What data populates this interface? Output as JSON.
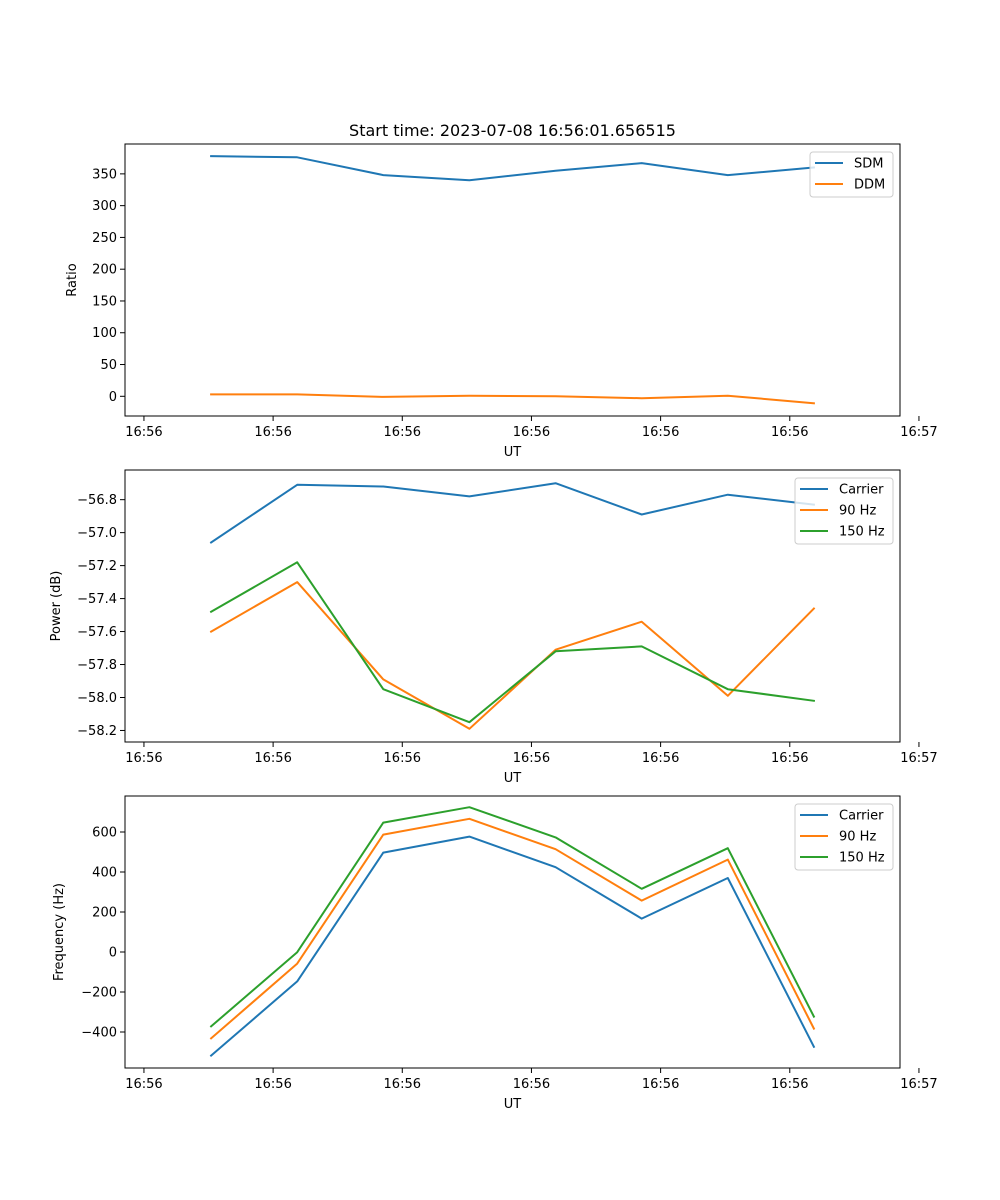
{
  "figure": {
    "title": "Start time: 2023-07-08 16:56:01.656515"
  },
  "colors": {
    "blue": "#1f77b4",
    "orange": "#ff7f0e",
    "green": "#2ca02c"
  },
  "chart_data": [
    {
      "type": "line",
      "title": "Start time: 2023-07-08 16:56:01.656515",
      "xlabel": "UT",
      "ylabel": "Ratio",
      "xlim": [
        0,
        9
      ],
      "ylim": [
        -31,
        397
      ],
      "x": [
        1,
        2,
        3,
        4,
        5,
        6,
        7,
        8
      ],
      "xticks": [
        0.22,
        1.72,
        3.22,
        4.72,
        6.22,
        7.72,
        9.22
      ],
      "xtick_labels": [
        "16:56",
        "16:56",
        "16:56",
        "16:56",
        "16:56",
        "16:56",
        "16:57"
      ],
      "yticks": [
        0,
        50,
        100,
        150,
        200,
        250,
        300,
        350
      ],
      "ytick_labels": [
        "0",
        "50",
        "100",
        "150",
        "200",
        "250",
        "300",
        "350"
      ],
      "legend": "upper right",
      "series": [
        {
          "name": "SDM",
          "color": "#1f77b4",
          "values": [
            378,
            376,
            348,
            340,
            355,
            367,
            348,
            360
          ]
        },
        {
          "name": "DDM",
          "color": "#ff7f0e",
          "values": [
            3,
            3,
            -1,
            1,
            0,
            -3,
            1,
            -11
          ]
        }
      ]
    },
    {
      "type": "line",
      "title": "",
      "xlabel": "UT",
      "ylabel": "Power (dB)",
      "xlim": [
        0,
        9
      ],
      "ylim": [
        -58.27,
        -56.62
      ],
      "x": [
        1,
        2,
        3,
        4,
        5,
        6,
        7,
        8
      ],
      "xticks": [
        0.22,
        1.72,
        3.22,
        4.72,
        6.22,
        7.72,
        9.22
      ],
      "xtick_labels": [
        "16:56",
        "16:56",
        "16:56",
        "16:56",
        "16:56",
        "16:56",
        "16:57"
      ],
      "yticks": [
        -58.2,
        -58.0,
        -57.8,
        -57.6,
        -57.4,
        -57.2,
        -57.0,
        -56.8
      ],
      "ytick_labels": [
        "−58.2",
        "−58.0",
        "−57.8",
        "−57.6",
        "−57.4",
        "−57.2",
        "−57.0",
        "−56.8"
      ],
      "legend": "upper right",
      "series": [
        {
          "name": "Carrier",
          "color": "#1f77b4",
          "values": [
            -57.06,
            -56.71,
            -56.72,
            -56.78,
            -56.7,
            -56.89,
            -56.77,
            -56.83
          ]
        },
        {
          "name": "90 Hz",
          "color": "#ff7f0e",
          "values": [
            -57.6,
            -57.3,
            -57.89,
            -58.19,
            -57.71,
            -57.54,
            -57.99,
            -57.46
          ]
        },
        {
          "name": "150 Hz",
          "color": "#2ca02c",
          "values": [
            -57.48,
            -57.18,
            -57.95,
            -58.15,
            -57.72,
            -57.69,
            -57.95,
            -58.02
          ]
        }
      ]
    },
    {
      "type": "line",
      "title": "",
      "xlabel": "UT",
      "ylabel": "Frequency (Hz)",
      "xlim": [
        0,
        9
      ],
      "ylim": [
        -580,
        780
      ],
      "x": [
        1,
        2,
        3,
        4,
        5,
        6,
        7,
        8
      ],
      "xticks": [
        0.22,
        1.72,
        3.22,
        4.72,
        6.22,
        7.72,
        9.22
      ],
      "xtick_labels": [
        "16:56",
        "16:56",
        "16:56",
        "16:56",
        "16:56",
        "16:56",
        "16:57"
      ],
      "yticks": [
        -400,
        -200,
        0,
        200,
        400,
        600
      ],
      "ytick_labels": [
        "−400",
        "−200",
        "0",
        "200",
        "400",
        "600"
      ],
      "legend": "upper right",
      "series": [
        {
          "name": "Carrier",
          "color": "#1f77b4",
          "values": [
            -518,
            -147,
            497,
            577,
            424,
            167,
            370,
            -474
          ]
        },
        {
          "name": "90 Hz",
          "color": "#ff7f0e",
          "values": [
            -432,
            -58,
            587,
            666,
            514,
            257,
            462,
            -383
          ]
        },
        {
          "name": "150 Hz",
          "color": "#2ca02c",
          "values": [
            -372,
            -1,
            647,
            724,
            573,
            316,
            519,
            -323
          ]
        }
      ]
    }
  ]
}
